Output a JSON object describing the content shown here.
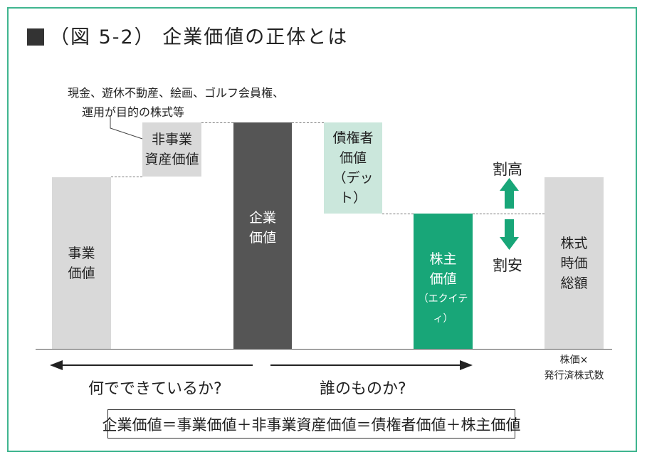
{
  "title": "（図 5-2） 企業価値の正体とは",
  "note": {
    "line1": "現金、遊休不動産、絵画、ゴルフ会員権、",
    "line2": "運用が目的の株式等"
  },
  "bars": {
    "business": {
      "line1": "事業",
      "line2": "価値"
    },
    "non_business": {
      "line1": "非事業",
      "line2": "資産価値"
    },
    "enterprise": {
      "line1": "企業",
      "line2": "価値"
    },
    "debt": {
      "line1": "債権者",
      "line2": "価値",
      "line3": "（デット）"
    },
    "equity": {
      "line1": "株主",
      "line2": "価値",
      "line3": "（エクイティ）"
    },
    "market_cap": {
      "line1": "株式",
      "line2": "時価",
      "line3": "総額"
    }
  },
  "arrows": {
    "up_label": "割高",
    "down_label": "割安",
    "left_label": "何でできているか?",
    "right_label": "誰のものか?"
  },
  "caption": {
    "line1": "株価×",
    "line2": "発行済株式数"
  },
  "formula": "企業価値＝事業価値＋非事業資産価値＝債権者価値＋株主価値",
  "colors": {
    "frame": "#3fb58f",
    "light_gray": "#d9d9d9",
    "dark_gray": "#555555",
    "mint": "#cbe7dc",
    "green": "#18a678"
  }
}
